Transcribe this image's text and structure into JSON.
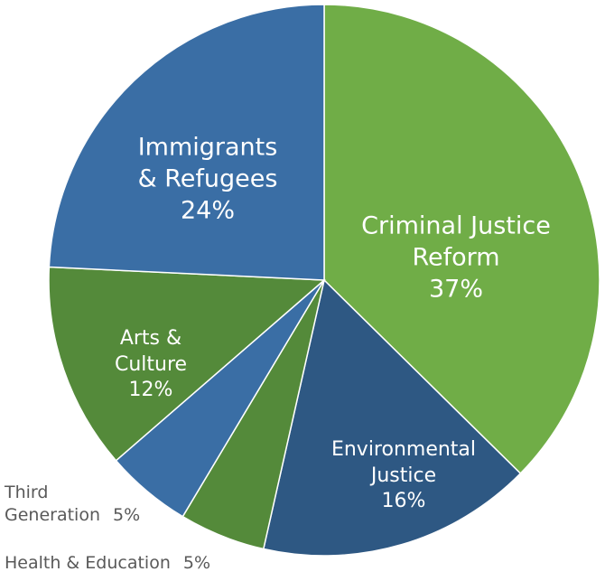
{
  "chart_data": {
    "type": "pie",
    "categories": [
      "Criminal Justice Reform",
      "Environmental Justice",
      "Health & Education",
      "Third Generation",
      "Arts & Culture",
      "Immigrants & Refugees"
    ],
    "values": [
      37,
      16,
      5,
      5,
      12,
      24
    ],
    "value_labels": [
      "37%",
      "16%",
      "5%",
      "5%",
      "12%",
      "24%"
    ],
    "colors": [
      "#70ad47",
      "#2e5883",
      "#548a3a",
      "#3a6ea5",
      "#548a3a",
      "#3a6ea5"
    ]
  }
}
